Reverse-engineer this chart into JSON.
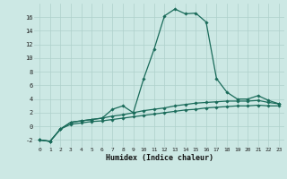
{
  "xlabel": "Humidex (Indice chaleur)",
  "x": [
    0,
    1,
    2,
    3,
    4,
    5,
    6,
    7,
    8,
    9,
    10,
    11,
    12,
    13,
    14,
    15,
    16,
    17,
    18,
    19,
    20,
    21,
    22,
    23
  ],
  "line1": [
    -2,
    -2.2,
    -0.4,
    0.6,
    0.8,
    1.0,
    1.2,
    2.5,
    3.0,
    2.0,
    7.0,
    11.3,
    16.2,
    17.2,
    16.5,
    16.6,
    15.3,
    7.0,
    5.0,
    4.0,
    4.0,
    4.5,
    3.8,
    3.3
  ],
  "line2": [
    -2,
    -2.2,
    -0.4,
    0.6,
    0.8,
    1.0,
    1.2,
    1.5,
    1.7,
    2.0,
    2.3,
    2.5,
    2.7,
    3.0,
    3.2,
    3.4,
    3.5,
    3.6,
    3.7,
    3.7,
    3.7,
    3.8,
    3.5,
    3.3
  ],
  "line3": [
    -2,
    -2.2,
    -0.4,
    0.3,
    0.5,
    0.7,
    0.8,
    1.0,
    1.2,
    1.4,
    1.6,
    1.8,
    2.0,
    2.2,
    2.4,
    2.5,
    2.7,
    2.8,
    2.9,
    3.0,
    3.0,
    3.1,
    3.0,
    3.0
  ],
  "color": "#1a6b5a",
  "bg_color": "#cce8e4",
  "grid_color": "#aed0cb",
  "ylim": [
    -3,
    18
  ],
  "yticks": [
    -2,
    0,
    2,
    4,
    6,
    8,
    10,
    12,
    14,
    16
  ],
  "xticks": [
    0,
    1,
    2,
    3,
    4,
    5,
    6,
    7,
    8,
    9,
    10,
    11,
    12,
    13,
    14,
    15,
    16,
    17,
    18,
    19,
    20,
    21,
    22,
    23
  ],
  "xlim": [
    -0.5,
    23.5
  ]
}
